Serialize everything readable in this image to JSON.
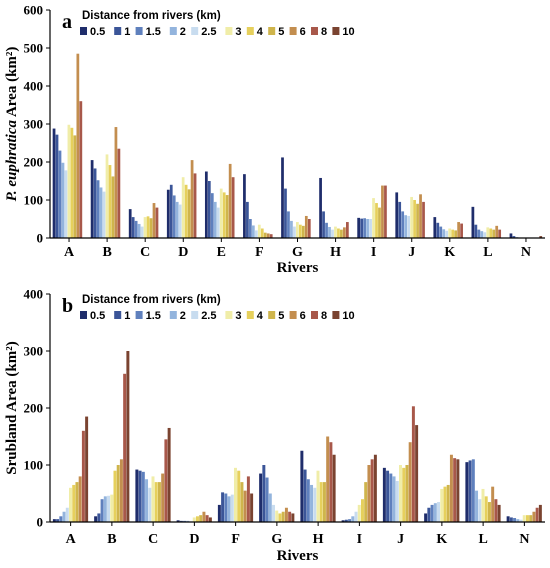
{
  "distances": [
    "0.5",
    "1",
    "1.5",
    "2",
    "2.5",
    "3",
    "4",
    "5",
    "6",
    "8",
    "10"
  ],
  "colors": [
    "#1f2d6b",
    "#3b5598",
    "#5f80bd",
    "#93b4dd",
    "#c8dcef",
    "#f0eda8",
    "#e6d05c",
    "#cfb54c",
    "#c38e4f",
    "#a8584a",
    "#7a4330"
  ],
  "chart_data": [
    {
      "type": "bar",
      "panel": "a",
      "legend_title": "Distance from rivers (km)",
      "ylabel_italic": "P. euphratica",
      "ylabel_rest": " Area (km²)",
      "xlabel": "Rivers",
      "ylim": [
        0,
        600
      ],
      "yticks": [
        0,
        100,
        200,
        300,
        400,
        500,
        600
      ],
      "categories": [
        "A",
        "B",
        "C",
        "D",
        "E",
        "F",
        "G",
        "H",
        "I",
        "J",
        "K",
        "L",
        "N"
      ],
      "values": [
        [
          288,
          272,
          230,
          198,
          178,
          298,
          290,
          270,
          485,
          360,
          0
        ],
        [
          205,
          183,
          152,
          133,
          122,
          220,
          192,
          162,
          292,
          235,
          0
        ],
        [
          76,
          55,
          45,
          37,
          30,
          55,
          57,
          52,
          92,
          80,
          0
        ],
        [
          127,
          140,
          112,
          95,
          88,
          160,
          140,
          128,
          205,
          170,
          0
        ],
        [
          175,
          150,
          118,
          95,
          80,
          130,
          120,
          113,
          195,
          160,
          0
        ],
        [
          168,
          95,
          50,
          33,
          20,
          35,
          25,
          14,
          12,
          10,
          0
        ],
        [
          212,
          130,
          70,
          45,
          30,
          42,
          35,
          32,
          58,
          50,
          0
        ],
        [
          158,
          70,
          40,
          29,
          22,
          30,
          25,
          22,
          28,
          42,
          0
        ],
        [
          53,
          51,
          52,
          50,
          50,
          105,
          92,
          80,
          138,
          138,
          0
        ],
        [
          120,
          95,
          70,
          60,
          58,
          108,
          100,
          90,
          115,
          95,
          0
        ],
        [
          55,
          40,
          30,
          23,
          19,
          25,
          22,
          20,
          42,
          38,
          0
        ],
        [
          82,
          35,
          22,
          18,
          15,
          28,
          25,
          22,
          32,
          22,
          0
        ],
        [
          12,
          5,
          2,
          1,
          1,
          0,
          0,
          0,
          0,
          0,
          5
        ]
      ]
    },
    {
      "type": "bar",
      "panel": "b",
      "legend_title": "Distance from rivers (km)",
      "ylabel": "Srubland Area (km²)",
      "xlabel": "Rivers",
      "ylim": [
        0,
        400
      ],
      "yticks": [
        0,
        100,
        200,
        300,
        400
      ],
      "categories": [
        "A",
        "B",
        "C",
        "D",
        "F",
        "G",
        "H",
        "I",
        "J",
        "K",
        "L",
        "N"
      ],
      "values": [
        [
          5,
          5,
          10,
          18,
          25,
          60,
          65,
          70,
          80,
          160,
          185
        ],
        [
          10,
          15,
          40,
          45,
          46,
          48,
          90,
          100,
          110,
          260,
          300
        ],
        [
          92,
          90,
          88,
          75,
          60,
          80,
          70,
          70,
          85,
          145,
          165
        ],
        [
          3,
          2,
          2,
          2,
          1,
          8,
          10,
          12,
          18,
          12,
          8
        ],
        [
          30,
          52,
          50,
          45,
          48,
          95,
          90,
          70,
          55,
          80,
          50
        ],
        [
          85,
          100,
          78,
          50,
          30,
          20,
          15,
          18,
          25,
          18,
          15
        ],
        [
          125,
          92,
          75,
          65,
          60,
          90,
          70,
          70,
          150,
          140,
          118
        ],
        [
          3,
          4,
          5,
          10,
          18,
          30,
          40,
          70,
          100,
          110,
          118
        ],
        [
          95,
          90,
          85,
          80,
          72,
          100,
          95,
          100,
          140,
          203,
          170
        ],
        [
          15,
          25,
          30,
          33,
          35,
          58,
          62,
          65,
          118,
          112,
          110
        ],
        [
          105,
          108,
          110,
          55,
          40,
          58,
          45,
          35,
          62,
          40,
          30
        ],
        [
          10,
          8,
          7,
          5,
          4,
          12,
          12,
          12,
          18,
          25,
          30
        ]
      ]
    }
  ]
}
